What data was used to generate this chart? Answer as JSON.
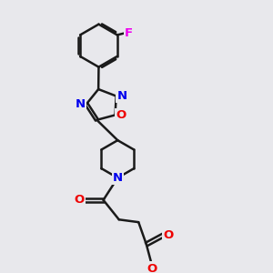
{
  "bg": "#e8e8ec",
  "bc": "#1a1a1a",
  "nc": "#0000ee",
  "oc": "#ee0000",
  "fc": "#ee00ee",
  "lw": 1.8,
  "fs": 9.5,
  "figsize": [
    3.0,
    3.0
  ],
  "dpi": 100,
  "xlim": [
    0,
    10
  ],
  "ylim": [
    0,
    10
  ]
}
